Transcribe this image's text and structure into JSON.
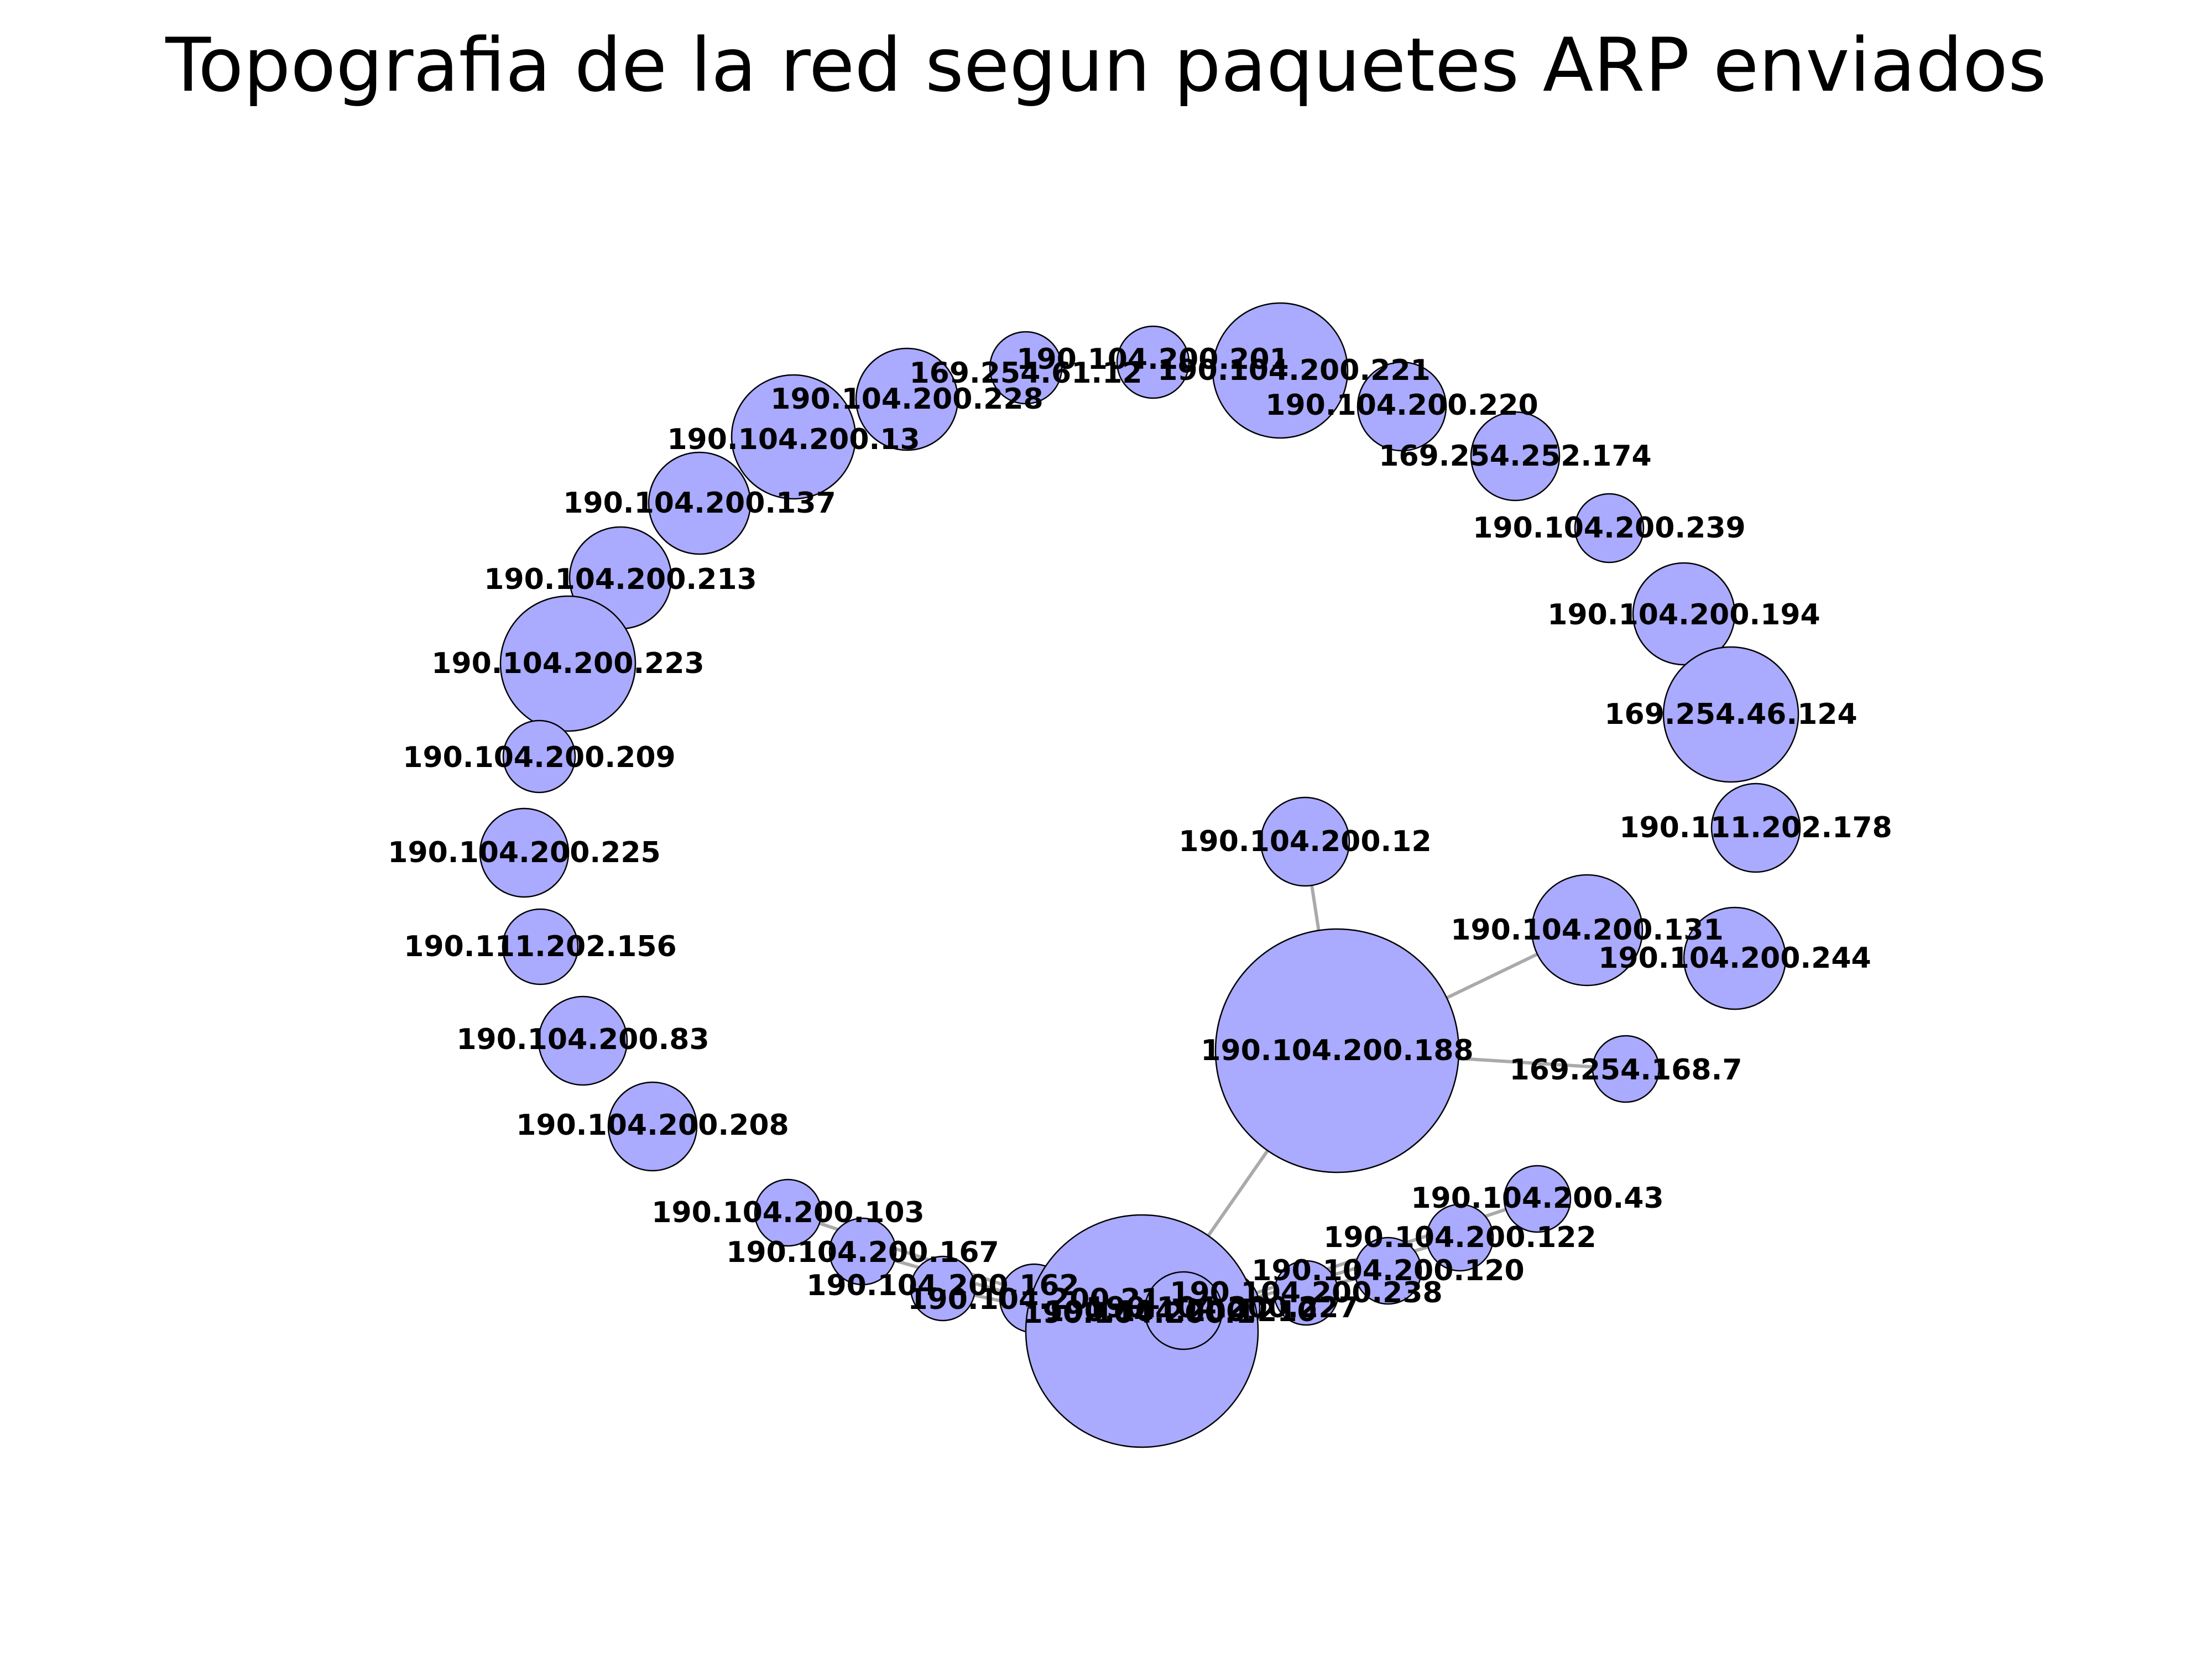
{
  "title": "Topografia de la red segun paquetes ARP enviados",
  "colors": {
    "node_fill": "#aaaaff",
    "node_stroke": "#000000",
    "edge": "#aaaaaa",
    "label": "#000000"
  },
  "graph": {
    "nodes": [
      {
        "id": "169.254.61.12",
        "label": "169.254.61.12",
        "size": 1
      },
      {
        "id": "190.104.200.201",
        "label": "190.104.200.201",
        "size": 1
      },
      {
        "id": "190.104.200.221",
        "label": "190.104.200.221",
        "size": 3
      },
      {
        "id": "190.104.200.228",
        "label": "190.104.200.228",
        "size": 2
      },
      {
        "id": "190.104.200.220",
        "label": "190.104.200.220",
        "size": 1.5
      },
      {
        "id": "190.104.200.13",
        "label": "190.104.200.13",
        "size": 2.5
      },
      {
        "id": "169.254.252.174",
        "label": "169.254.252.174",
        "size": 1.5
      },
      {
        "id": "190.104.200.137",
        "label": "190.104.200.137",
        "size": 2
      },
      {
        "id": "190.104.200.239",
        "label": "190.104.200.239",
        "size": 1
      },
      {
        "id": "190.104.200.213",
        "label": "190.104.200.213",
        "size": 2
      },
      {
        "id": "190.104.200.194",
        "label": "190.104.200.194",
        "size": 2
      },
      {
        "id": "190.104.200.223",
        "label": "190.104.200.223",
        "size": 3
      },
      {
        "id": "169.254.46.124",
        "label": "169.254.46.124",
        "size": 3
      },
      {
        "id": "190.104.200.209",
        "label": "190.104.200.209",
        "size": 1
      },
      {
        "id": "190.111.202.178",
        "label": "190.111.202.178",
        "size": 1.5
      },
      {
        "id": "190.104.200.225",
        "label": "190.104.200.225",
        "size": 1.5
      },
      {
        "id": "190.104.200.12",
        "label": "190.104.200.12",
        "size": 1.5
      },
      {
        "id": "190.104.200.131",
        "label": "190.104.200.131",
        "size": 2
      },
      {
        "id": "190.104.200.244",
        "label": "190.104.200.244",
        "size": 2
      },
      {
        "id": "190.111.202.156",
        "label": "190.111.202.156",
        "size": 1
      },
      {
        "id": "190.104.200.83",
        "label": "190.104.200.83",
        "size": 1.5
      },
      {
        "id": "190.104.200.188",
        "label": "190.104.200.188",
        "size": 10
      },
      {
        "id": "169.254.168.7",
        "label": "169.254.168.7",
        "size": 1
      },
      {
        "id": "190.104.200.208",
        "label": "190.104.200.208",
        "size": 1.5
      },
      {
        "id": "190.104.200.43",
        "label": "190.104.200.43",
        "size": 1
      },
      {
        "id": "190.104.200.103",
        "label": "190.104.200.103",
        "size": 1
      },
      {
        "id": "190.104.200.122",
        "label": "190.104.200.122",
        "size": 1
      },
      {
        "id": "190.104.200.167",
        "label": "190.104.200.167",
        "size": 1
      },
      {
        "id": "190.104.200.120",
        "label": "190.104.200.120",
        "size": 1
      },
      {
        "id": "190.104.200.162",
        "label": "190.104.200.162",
        "size": 1
      },
      {
        "id": "190.104.200.238",
        "label": "190.104.200.238",
        "size": 1
      },
      {
        "id": "190.104.200.227",
        "label": "190.104.200.227",
        "size": 1
      },
      {
        "id": "190.104.200.21",
        "label": "190.104.200.21",
        "size": 1
      },
      {
        "id": "190.104.200.1",
        "label": "190.104.200.1",
        "size": 9
      },
      {
        "id": "190.104.200.210",
        "label": "190.104.200.210",
        "size": 1
      }
    ],
    "edges": [
      [
        "190.104.200.188",
        "190.104.200.12"
      ],
      [
        "190.104.200.188",
        "190.104.200.131"
      ],
      [
        "190.104.200.188",
        "169.254.168.7"
      ],
      [
        "190.104.200.188",
        "190.104.200.1"
      ],
      [
        "190.104.200.1",
        "190.104.200.103"
      ],
      [
        "190.104.200.1",
        "190.104.200.167"
      ],
      [
        "190.104.200.1",
        "190.104.200.162"
      ],
      [
        "190.104.200.1",
        "190.104.200.21"
      ],
      [
        "190.104.200.1",
        "190.104.200.210"
      ],
      [
        "190.104.200.1",
        "190.104.200.227"
      ],
      [
        "190.104.200.1",
        "190.104.200.238"
      ],
      [
        "190.104.200.1",
        "190.104.200.120"
      ],
      [
        "190.104.200.1",
        "190.104.200.122"
      ],
      [
        "190.104.200.1",
        "190.104.200.43"
      ]
    ]
  }
}
